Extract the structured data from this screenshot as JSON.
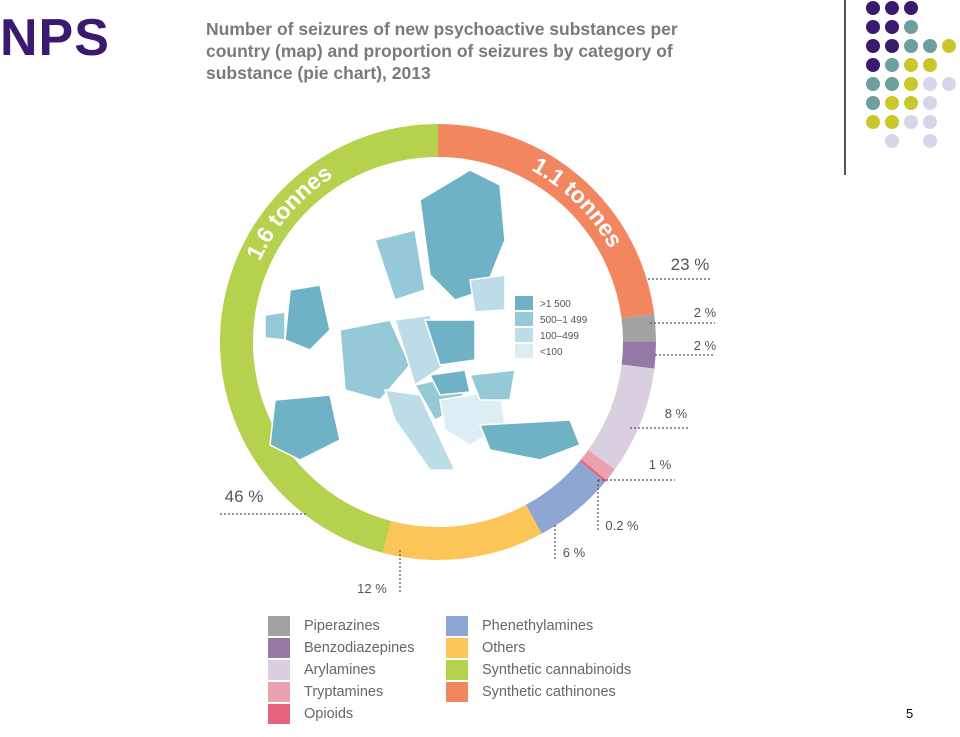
{
  "slide": {
    "title": "NPS",
    "page_number": "5"
  },
  "chart_title_lines": [
    "Number of seizures of new psychoactive substances per",
    "country (map) and proportion of seizures by category of",
    "substance (pie chart), 2013"
  ],
  "map_legend": {
    "items": [
      {
        "label": ">1 500",
        "color": "#6fb2c6"
      },
      {
        "label": "500–1 499",
        "color": "#95c9d8"
      },
      {
        "label": "100–499",
        "color": "#bcdde7"
      },
      {
        "label": "<100",
        "color": "#dcedf3"
      }
    ]
  },
  "chart_data": {
    "type": "pie",
    "style": "donut",
    "title": "Number of seizures of new psychoactive substances per country (map) and proportion of seizures by category of substance (pie chart), 2013",
    "slices": [
      {
        "name": "Synthetic cathinones",
        "value": 23,
        "label": "23 %",
        "color": "#f2875f"
      },
      {
        "name": "Piperazines",
        "value": 2,
        "label": "2 %",
        "color": "#a2a2a2"
      },
      {
        "name": "Benzodiazepines",
        "value": 2,
        "label": "2 %",
        "color": "#9579a4"
      },
      {
        "name": "Arylamines",
        "value": 8,
        "label": "8 %",
        "color": "#d9cfe1"
      },
      {
        "name": "Tryptamines",
        "value": 1,
        "label": "1 %",
        "color": "#eba0ae"
      },
      {
        "name": "Opioids",
        "value": 0.2,
        "label": "0.2 %",
        "color": "#e8637e"
      },
      {
        "name": "Phenethylamines",
        "value": 6,
        "label": "6 %",
        "color": "#8ea6d4"
      },
      {
        "name": "Others",
        "value": 12,
        "label": "12 %",
        "color": "#fcc557"
      },
      {
        "name": "Synthetic cannabinoids",
        "value": 46,
        "label": "46 %",
        "color": "#b4d24d"
      }
    ],
    "arc_labels": [
      {
        "text": "1.6 tonnes",
        "slice": "Synthetic cannabinoids"
      },
      {
        "text": "1.1 tonnes",
        "slice": "Synthetic cathinones"
      }
    ],
    "legend": {
      "placement": "bottom",
      "columns": [
        [
          {
            "name": "Piperazines",
            "color": "#a2a2a2"
          },
          {
            "name": "Benzodiazepines",
            "color": "#9579a4"
          },
          {
            "name": "Arylamines",
            "color": "#d9cfe1"
          },
          {
            "name": "Tryptamines",
            "color": "#eba0ae"
          },
          {
            "name": "Opioids",
            "color": "#e8637e"
          }
        ],
        [
          {
            "name": "Phenethylamines",
            "color": "#8ea6d4"
          },
          {
            "name": "Others",
            "color": "#fcc557"
          },
          {
            "name": "Synthetic cannabinoids",
            "color": "#b4d24d"
          },
          {
            "name": "Synthetic cathinones",
            "color": "#f2875f"
          }
        ]
      ]
    }
  },
  "colors": {
    "title_purple": "#3a1a6e",
    "dot_purple": "#3a1a6e",
    "dot_teal": "#6e9f9f",
    "dot_yellow": "#c8c82a",
    "dot_lavender": "#d6d6ea"
  }
}
